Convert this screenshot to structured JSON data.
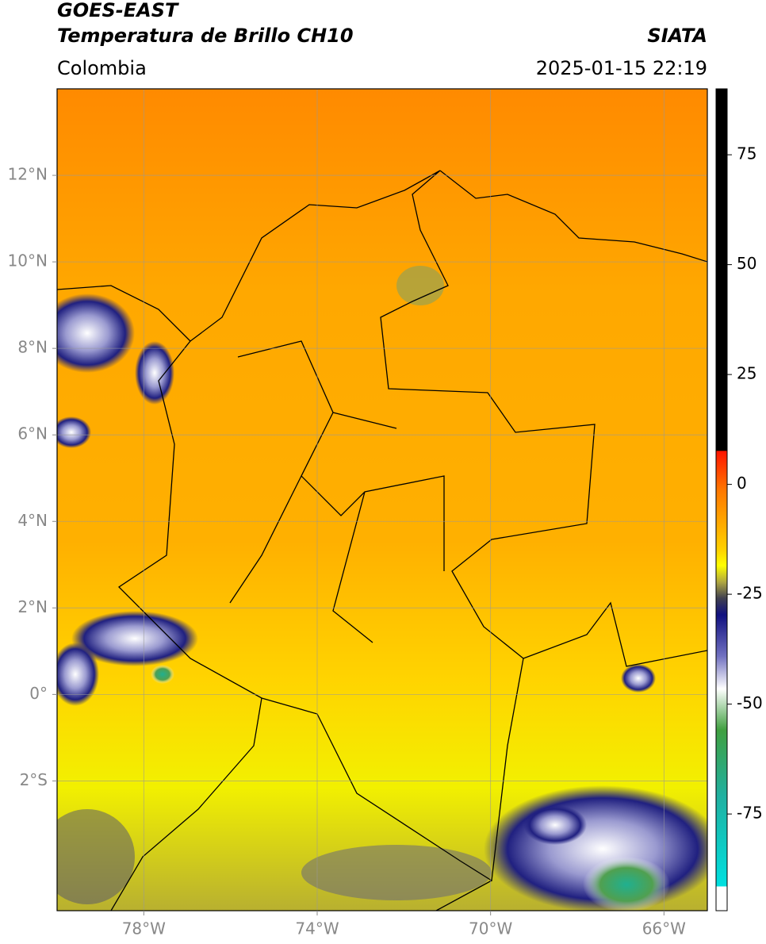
{
  "header": {
    "title": "GOES-EAST",
    "subtitle": "Temperatura de Brillo CH10",
    "source": "SIATA",
    "region": "Colombia",
    "datetime": "2025-01-15 22:19"
  },
  "map": {
    "xlim": [
      -80,
      -65
    ],
    "ylim": [
      -5,
      14
    ],
    "xticks": [
      {
        "value": -78,
        "label": "78°W"
      },
      {
        "value": -74,
        "label": "74°W"
      },
      {
        "value": -70,
        "label": "70°W"
      },
      {
        "value": -66,
        "label": "66°W"
      }
    ],
    "yticks": [
      {
        "value": 12,
        "label": "12°N"
      },
      {
        "value": 10,
        "label": "10°N"
      },
      {
        "value": 8,
        "label": "8°N"
      },
      {
        "value": 6,
        "label": "6°N"
      },
      {
        "value": 4,
        "label": "4°N"
      },
      {
        "value": 2,
        "label": "2°N"
      },
      {
        "value": 0,
        "label": "0°"
      },
      {
        "value": -2,
        "label": "2°S"
      }
    ],
    "grid": true
  },
  "colorbar": {
    "clim": [
      -97,
      90
    ],
    "ticks": [
      75,
      50,
      25,
      0,
      -25,
      -50,
      -75
    ]
  }
}
